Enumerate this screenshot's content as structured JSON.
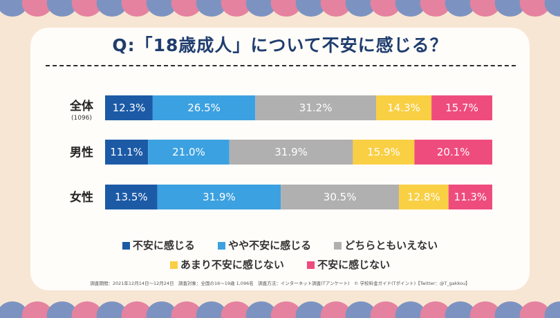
{
  "title": "Q:「18歳成人」について不安に感じる？",
  "colors": {
    "background": "#f7e6d3",
    "band_pink": "#e5829f",
    "band_blue": "#7c93c2",
    "title": "#1f3d6e"
  },
  "chart_data": {
    "type": "bar",
    "orientation": "horizontal",
    "stacked": true,
    "unit": "%",
    "categories": [
      "全体",
      "男性",
      "女性"
    ],
    "category_sublabels": [
      "(1096)",
      "",
      ""
    ],
    "series": [
      {
        "name": "不安に感じる",
        "color": "#1c5aa6",
        "values": [
          12.3,
          11.1,
          13.5
        ]
      },
      {
        "name": "やや不安に感じる",
        "color": "#3ca1e0",
        "values": [
          26.5,
          21.0,
          31.9
        ]
      },
      {
        "name": "どちらともいえない",
        "color": "#b0b0b0",
        "values": [
          31.2,
          31.9,
          30.5
        ]
      },
      {
        "name": "あまり不安に感じない",
        "color": "#f9cf44",
        "values": [
          14.3,
          15.9,
          12.8
        ]
      },
      {
        "name": "不安に感じない",
        "color": "#ef4c7e",
        "values": [
          15.7,
          20.1,
          11.3
        ]
      }
    ],
    "value_labels": [
      [
        "12.3%",
        "26.5%",
        "31.2%",
        "14.3%",
        "15.7%"
      ],
      [
        "11.1%",
        "21.0%",
        "31.9%",
        "15.9%",
        "20.1%"
      ],
      [
        "13.5%",
        "31.9%",
        "30.5%",
        "12.8%",
        "11.3%"
      ]
    ],
    "legend_position": "bottom"
  },
  "footnote": "調査期間：2021年12月14日〜12月24日　調査対象：全国の16〜19歳 1,096名　調査方法：インターネット調査(Tアンケート)　© 学校料金ガイド(Tポイント)【Twitter：@T_gakkou】"
}
